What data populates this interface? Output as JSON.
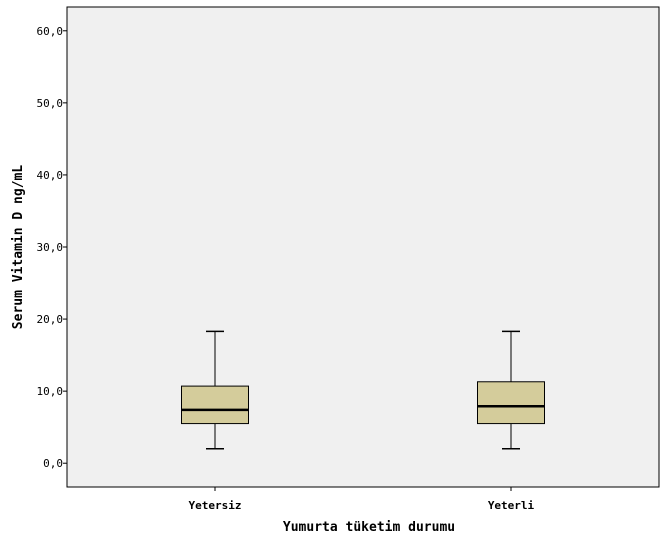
{
  "chart_data": {
    "type": "box",
    "xlabel": "Yumurta tüketim durumu",
    "ylabel": "Serum Vitamin D ng/mL",
    "ylim": [
      -3.3,
      63.3
    ],
    "yticks": [
      0,
      10,
      20,
      30,
      40,
      50,
      60
    ],
    "ytick_labels": [
      "0,0",
      "10,0",
      "20,0",
      "30,0",
      "40,0",
      "50,0",
      "60,0"
    ],
    "categories": [
      "Yetersiz",
      "Yeterli"
    ],
    "boxes": [
      {
        "category": "Yetersiz",
        "min": 2.0,
        "q1": 5.5,
        "median": 7.4,
        "q3": 10.7,
        "max": 18.3
      },
      {
        "category": "Yeterli",
        "min": 2.0,
        "q1": 5.5,
        "median": 7.9,
        "q3": 11.3,
        "max": 18.3
      }
    ],
    "box_color": "#d4cc9b",
    "background_color": "#f0f0f0",
    "grid": false,
    "legend": "none"
  }
}
